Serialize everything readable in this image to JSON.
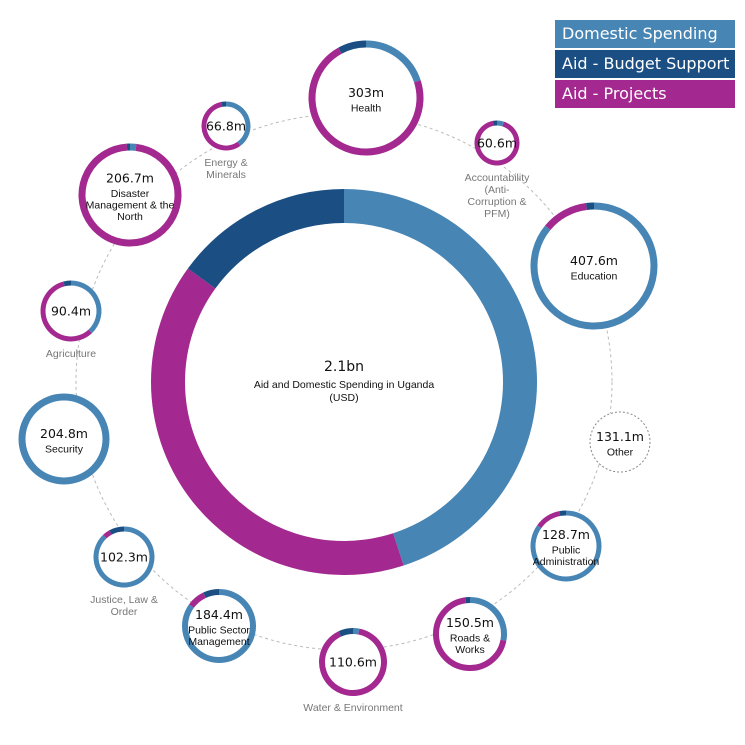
{
  "colors": {
    "domestic": "#4785b5",
    "budget": "#1b4f83",
    "projects": "#a3288f",
    "ring": "#cccccc"
  },
  "legend": [
    {
      "label": "Domestic Spending",
      "color": "#4785b5"
    },
    {
      "label": "Aid - Budget Support",
      "color": "#1b4f83"
    },
    {
      "label": "Aid - Projects",
      "color": "#a3288f"
    }
  ],
  "chart_data": {
    "type": "donut",
    "center": {
      "value": "2.1bn",
      "label_lines": [
        "Aid and Domestic Spending in Uganda",
        "(USD)"
      ],
      "shares": {
        "domestic": 0.45,
        "budget": 0.15,
        "projects": 0.4
      }
    },
    "series": [
      "Domestic Spending",
      "Aid - Budget Support",
      "Aid - Projects"
    ],
    "sectors": [
      {
        "name": "Health",
        "value": "303m",
        "label_lines": [
          "Health"
        ],
        "label_inside": true,
        "shares": {
          "domestic": 0.2,
          "budget": 0.08,
          "projects": 0.72
        }
      },
      {
        "name": "Accountability (Anti-Corruption & PFM)",
        "value": "60.6m",
        "label_lines": [
          "Accountability",
          "(Anti-",
          "Corruption &",
          "PFM)"
        ],
        "label_inside": false,
        "shares": {
          "domestic": 0.05,
          "budget": 0.03,
          "projects": 0.92
        }
      },
      {
        "name": "Education",
        "value": "407.6m",
        "label_lines": [
          "Education"
        ],
        "label_inside": true,
        "shares": {
          "domestic": 0.86,
          "budget": 0.02,
          "projects": 0.12
        }
      },
      {
        "name": "Other",
        "value": "131.1m",
        "label_lines": [
          "Other"
        ],
        "label_inside": true,
        "dashed": true,
        "shares": {
          "domestic": 0,
          "budget": 0,
          "projects": 0
        }
      },
      {
        "name": "Public Administration",
        "value": "128.7m",
        "label_lines": [
          "Public",
          "Administration"
        ],
        "label_inside": true,
        "shares": {
          "domestic": 0.85,
          "budget": 0.03,
          "projects": 0.12
        }
      },
      {
        "name": "Roads & Works",
        "value": "150.5m",
        "label_lines": [
          "Roads &",
          "Works"
        ],
        "label_inside": true,
        "shares": {
          "domestic": 0.28,
          "budget": 0.02,
          "projects": 0.7
        }
      },
      {
        "name": "Water & Environment",
        "value": "110.6m",
        "label_lines": [
          "Water & Environment"
        ],
        "label_inside": false,
        "shares": {
          "domestic": 0.03,
          "budget": 0.07,
          "projects": 0.9
        }
      },
      {
        "name": "Public Sector Management",
        "value": "184.4m",
        "label_lines": [
          "Public Sector",
          "Management"
        ],
        "label_inside": true,
        "shares": {
          "domestic": 0.85,
          "budget": 0.07,
          "projects": 0.08
        }
      },
      {
        "name": "Justice, Law & Order",
        "value": "102.3m",
        "label_lines": [
          "Justice, Law &",
          "Order"
        ],
        "label_inside": false,
        "shares": {
          "domestic": 0.88,
          "budget": 0.08,
          "projects": 0.04
        }
      },
      {
        "name": "Security",
        "value": "204.8m",
        "label_lines": [
          "Security"
        ],
        "label_inside": true,
        "shares": {
          "domestic": 1.0,
          "budget": 0,
          "projects": 0
        }
      },
      {
        "name": "Agriculture",
        "value": "90.4m",
        "label_lines": [
          "Agriculture"
        ],
        "label_inside": false,
        "shares": {
          "domestic": 0.38,
          "budget": 0.04,
          "projects": 0.58
        }
      },
      {
        "name": "Disaster Management & the North",
        "value": "206.7m",
        "label_lines": [
          "Disaster",
          "Management & the",
          "North"
        ],
        "label_inside": true,
        "shares": {
          "domestic": 0.02,
          "budget": 0.01,
          "projects": 0.97
        }
      },
      {
        "name": "Energy & Minerals",
        "value": "66.8m",
        "label_lines": [
          "Energy &",
          "Minerals"
        ],
        "label_inside": false,
        "shares": {
          "domestic": 0.4,
          "budget": 0.03,
          "projects": 0.57
        }
      }
    ]
  }
}
